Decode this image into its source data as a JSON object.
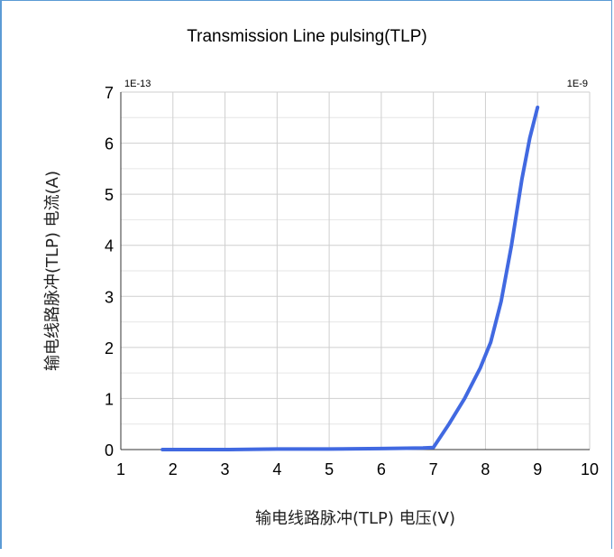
{
  "chart_data": {
    "type": "line",
    "title": "Transmission Line pulsing(TLP)",
    "xlabel": "输电线路脉冲(TLP) 电压(V)",
    "ylabel": "输电线路脉冲(TLP) 电流(A)",
    "x_multiplier": "1E-9",
    "y_multiplier": "1E-13",
    "xlim": [
      1,
      10
    ],
    "ylim": [
      0,
      7
    ],
    "xticks": [
      "1",
      "2",
      "3",
      "4",
      "5",
      "6",
      "7",
      "8",
      "9",
      "10"
    ],
    "yticks": [
      "0",
      "1",
      "2",
      "3",
      "4",
      "5",
      "6",
      "7"
    ],
    "grid": true,
    "series": [
      {
        "color": "#4169e1",
        "x": [
          1.8,
          3.0,
          4.0,
          5.0,
          6.0,
          6.8,
          7.0,
          7.3,
          7.6,
          7.9,
          8.1,
          8.3,
          8.5,
          8.7,
          8.85,
          9.0
        ],
        "y": [
          0.0,
          0.0,
          0.01,
          0.01,
          0.02,
          0.03,
          0.04,
          0.5,
          1.0,
          1.6,
          2.1,
          2.9,
          4.0,
          5.3,
          6.1,
          6.7
        ]
      }
    ]
  }
}
